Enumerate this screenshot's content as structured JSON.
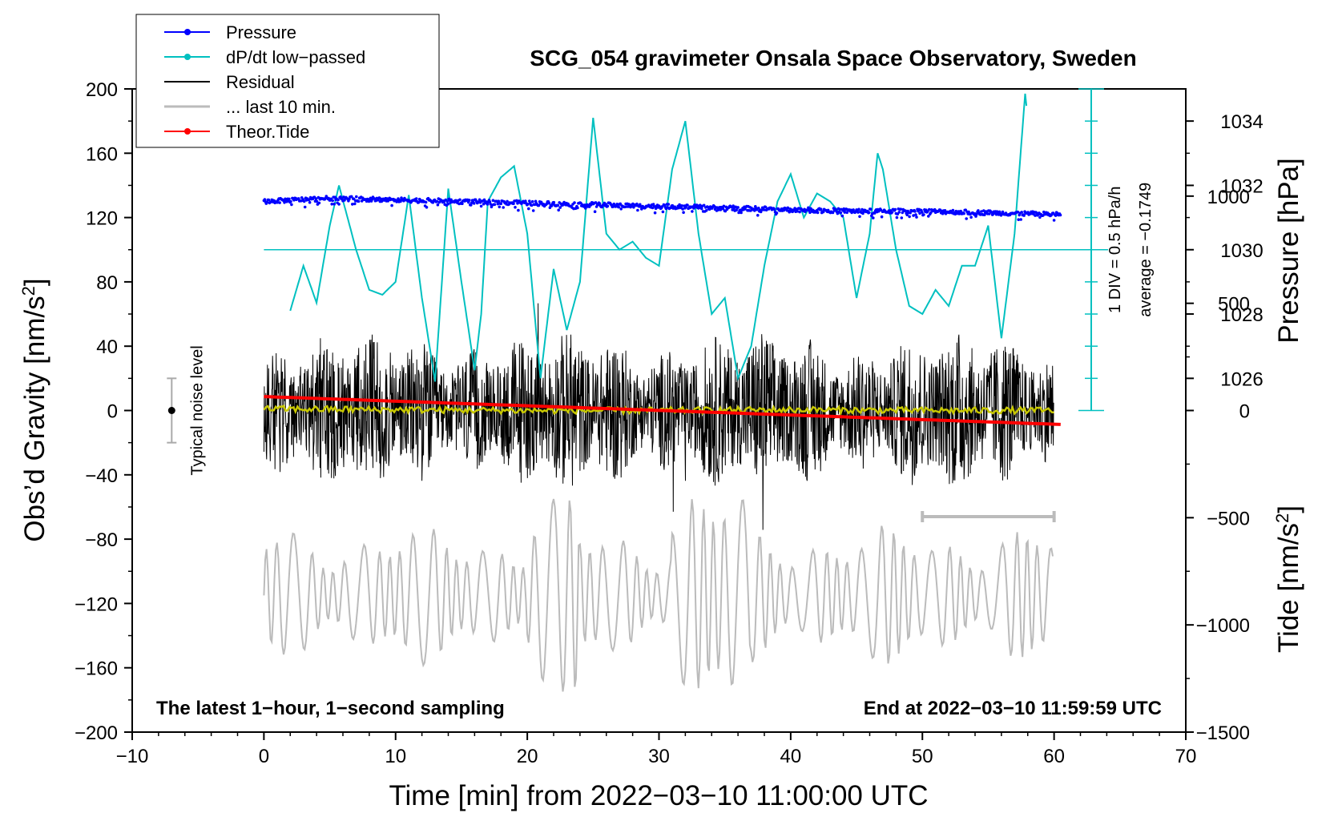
{
  "chart_data": {
    "type": "line",
    "title": "SCG_054 gravimeter Onsala Space Observatory, Sweden",
    "xlabel": "Time [min] from 2022−03−10 11:00:00 UTC",
    "ylabel_left_prefix": "Obs’d Gravity [nm/s",
    "ylabel_left_sup": "2",
    "ylabel_left_suffix": "]",
    "ylabel_right_top": "Pressure [hPa]",
    "ylabel_right_bottom_prefix": "Tide [nm/s",
    "ylabel_right_bottom_sup": "2",
    "ylabel_right_bottom_suffix": "]",
    "xlim": [
      -10,
      70
    ],
    "ylim_left": [
      -200,
      200
    ],
    "xticks": [
      -10,
      0,
      10,
      20,
      30,
      40,
      50,
      60,
      70
    ],
    "xtick_labels": [
      "−10",
      "0",
      "10",
      "20",
      "30",
      "40",
      "50",
      "60",
      "70"
    ],
    "yticks_left": [
      -200,
      -160,
      -120,
      -80,
      -40,
      0,
      40,
      80,
      120,
      160,
      200
    ],
    "ytick_labels_left": [
      "−200",
      "−160",
      "−120",
      "−80",
      "−40",
      "0",
      "40",
      "80",
      "120",
      "160",
      "200"
    ],
    "pressure_axis": {
      "ticks": [
        1026,
        1028,
        1030,
        1032,
        1034
      ],
      "labels": [
        "1026",
        "1028",
        "1030",
        "1032",
        "1034"
      ],
      "ref_value": 1030,
      "ref_gravity": 100,
      "hpa_per_gravity": 0.05
    },
    "tide_axis": {
      "ticks": [
        -1500,
        -1000,
        -500,
        0,
        500,
        1000
      ],
      "labels": [
        "−1500",
        "−1000",
        "−500",
        "0",
        "500",
        "1000"
      ],
      "ref_gravity": -200,
      "ref_value": -1500,
      "tide_per_gravity": 7.5
    },
    "dpdt_scale": {
      "label_div": "1 DIV = 0.5 hPa/h",
      "label_avg": "average = −0.1749",
      "center_gravity": 100,
      "top_gravity": 200,
      "bottom_gravity": 0,
      "div_gravity": 20
    },
    "noise_bar": {
      "label": "Typical noise level",
      "x": -7,
      "low": -20,
      "high": 20
    },
    "last10_bar": {
      "x_start": 50,
      "x_end": 60,
      "y": -66
    },
    "footer_left": "The latest 1−hour, 1−second sampling",
    "footer_right": "End at 2022−03−10 11:59:59 UTC",
    "legend": [
      {
        "label": "Pressure",
        "color": "#0000ff",
        "marker": true
      },
      {
        "label": "dP/dt low−passed",
        "color": "#00c0c0",
        "marker": true
      },
      {
        "label": "Residual",
        "color": "#000000",
        "marker": false
      },
      {
        "label": "... last 10 min.",
        "color": "#bbbbbb",
        "marker": false
      },
      {
        "label": "Theor.Tide",
        "color": "#ff0000",
        "marker": true
      }
    ],
    "series": [
      {
        "name": "Pressure",
        "units": "hPa",
        "color": "#0000ff",
        "x": [
          0,
          5,
          10,
          15,
          20,
          25,
          30,
          35,
          40,
          45,
          50,
          55,
          60
        ],
        "values": [
          1031.5,
          1031.6,
          1031.55,
          1031.5,
          1031.45,
          1031.4,
          1031.35,
          1031.3,
          1031.25,
          1031.2,
          1031.2,
          1031.15,
          1031.1
        ]
      },
      {
        "name": "dP/dt low−passed",
        "units": "gravity-axis",
        "color": "#00c0c0",
        "x": [
          2,
          3,
          4,
          5,
          5.7,
          7,
          8,
          9,
          10,
          11,
          12,
          13,
          14,
          15,
          16,
          16.5,
          17,
          18,
          19,
          20,
          21,
          22,
          23,
          24,
          25,
          26,
          27,
          28,
          29,
          30,
          31,
          32,
          33,
          34,
          35,
          36,
          37,
          38,
          39,
          40,
          41,
          42,
          43,
          44,
          45,
          46,
          46.6,
          47,
          48,
          49,
          50,
          51,
          52,
          53,
          54,
          55,
          56,
          57,
          57.8,
          58
        ],
        "values": [
          62,
          90,
          67,
          115,
          140,
          100,
          75,
          72,
          80,
          134,
          70,
          18,
          138,
          80,
          25,
          60,
          130,
          145,
          152,
          110,
          20,
          88,
          50,
          80,
          182,
          110,
          100,
          105,
          95,
          90,
          150,
          180,
          110,
          60,
          70,
          20,
          40,
          90,
          130,
          147,
          120,
          135,
          130,
          120,
          70,
          110,
          160,
          150,
          100,
          65,
          60,
          75,
          65,
          90,
          90,
          115,
          45,
          110,
          197,
          182
        ]
      },
      {
        "name": "Residual",
        "units": "nm/s2",
        "color": "#000000",
        "x_range": [
          0,
          60
        ],
        "typical_min": -65,
        "typical_max": 65,
        "mean": 0
      },
      {
        "name": "Residual smoothed",
        "units": "nm/s2",
        "color": "#c8c800",
        "x": [
          0,
          10,
          20,
          30,
          40,
          50,
          60
        ],
        "values": [
          1,
          0.5,
          0,
          0,
          0.5,
          0,
          0
        ]
      },
      {
        "name": "... last 10 min.",
        "units": "nm/s2",
        "color": "#bbbbbb",
        "x_range": [
          0,
          60
        ],
        "center": -115,
        "typical_amplitude": 30,
        "max_amplitude": 60
      },
      {
        "name": "Theor.Tide",
        "units": "nm/s2",
        "color": "#ff0000",
        "x": [
          0,
          60.5
        ],
        "values": [
          65,
          -65
        ]
      }
    ]
  }
}
